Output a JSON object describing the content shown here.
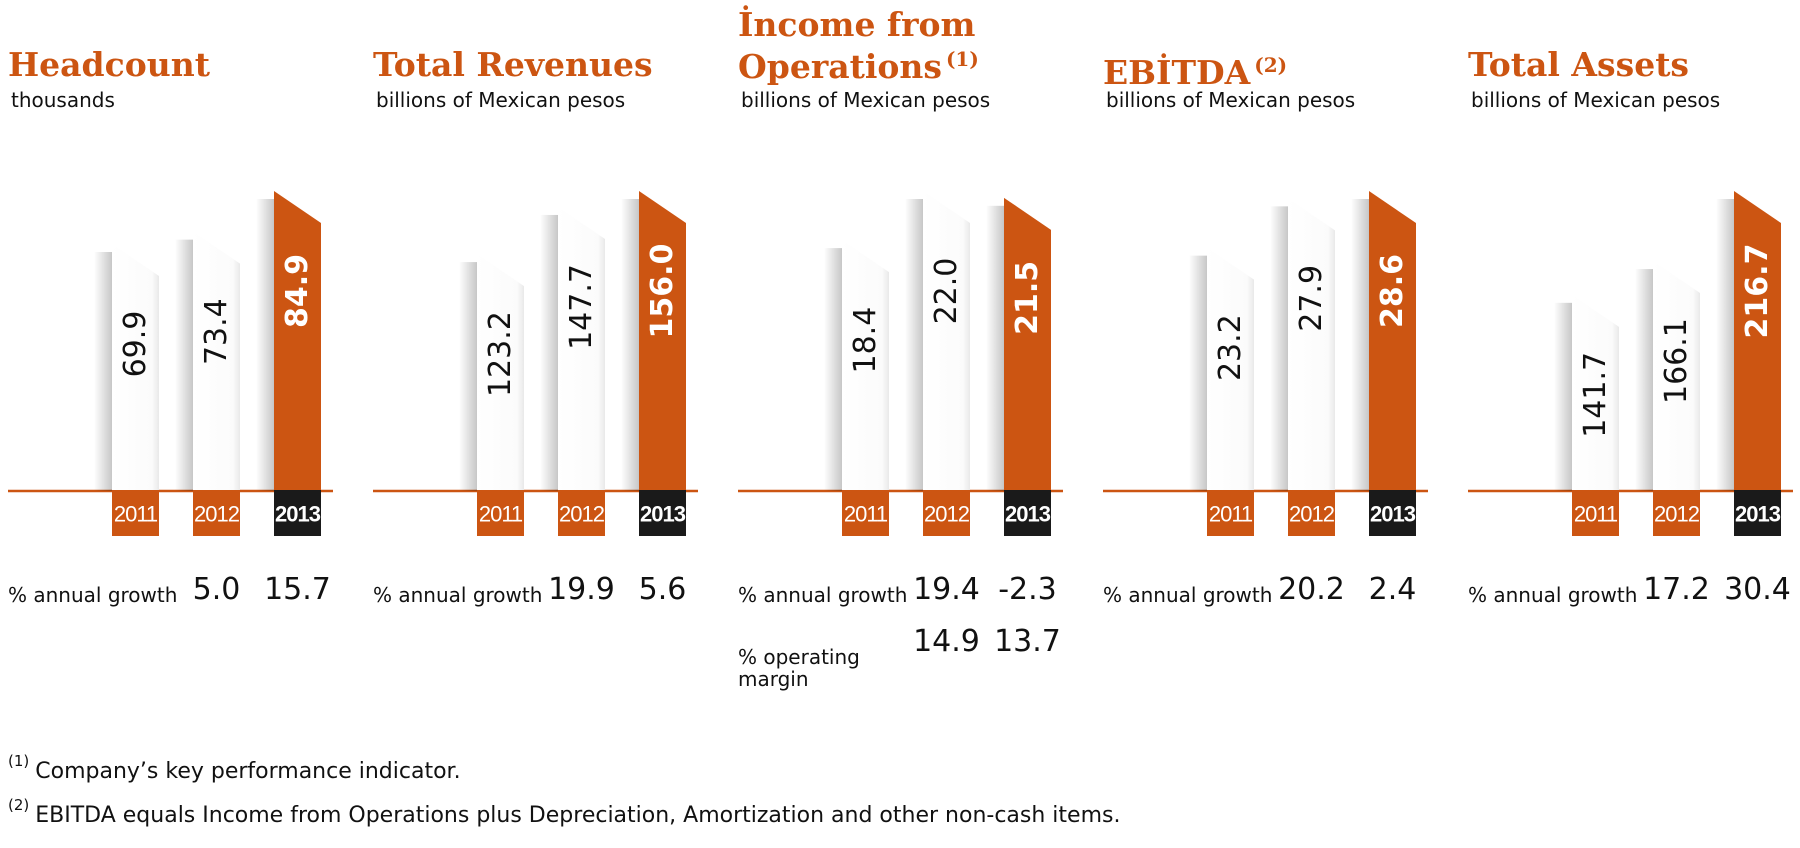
{
  "accent": "#cc5512",
  "dark": "#1a1a1a",
  "chart_data": [
    {
      "type": "bar",
      "title": "Headcount",
      "title_note": "",
      "ylabel": "thousands",
      "categories": [
        "2011",
        "2012",
        "2013"
      ],
      "values": [
        69.9,
        73.4,
        84.9
      ],
      "value_labels": [
        "69.9",
        "73.4",
        "84.9"
      ],
      "metrics": [
        {
          "label": "% annual growth",
          "values": [
            "",
            "5.0",
            "15.7"
          ]
        }
      ]
    },
    {
      "type": "bar",
      "title": "Total Revenues",
      "title_note": "",
      "ylabel": "billions of Mexican pesos",
      "categories": [
        "2011",
        "2012",
        "2013"
      ],
      "values": [
        123.2,
        147.7,
        156.0
      ],
      "value_labels": [
        "123.2",
        "147.7",
        "156.0"
      ],
      "metrics": [
        {
          "label": "% annual growth",
          "values": [
            "",
            "19.9",
            "5.6"
          ]
        }
      ]
    },
    {
      "type": "bar",
      "title": "İncome from Operations",
      "title_lines": [
        "İncome from",
        "Operations"
      ],
      "title_note": "(1)",
      "ylabel": "billions of Mexican pesos",
      "categories": [
        "2011",
        "2012",
        "2013"
      ],
      "values": [
        18.4,
        22.0,
        21.5
      ],
      "value_labels": [
        "18.4",
        "22.0",
        "21.5"
      ],
      "metrics": [
        {
          "label": "% annual growth",
          "values": [
            "",
            "19.4",
            "-2.3"
          ]
        },
        {
          "label": "% operating margin",
          "label_lines": [
            "% operating",
            "margin"
          ],
          "values": [
            "",
            "14.9",
            "13.7"
          ]
        }
      ]
    },
    {
      "type": "bar",
      "title": "EBİTDA",
      "title_note": "(2)",
      "ylabel": "billions of Mexican pesos",
      "categories": [
        "2011",
        "2012",
        "2013"
      ],
      "values": [
        23.2,
        27.9,
        28.6
      ],
      "value_labels": [
        "23.2",
        "27.9",
        "28.6"
      ],
      "metrics": [
        {
          "label": "% annual growth",
          "values": [
            "",
            "20.2",
            "2.4"
          ]
        }
      ]
    },
    {
      "type": "bar",
      "title": "Total Assets",
      "title_note": "",
      "ylabel": "billions of Mexican pesos",
      "categories": [
        "2011",
        "2012",
        "2013"
      ],
      "values": [
        141.7,
        166.1,
        216.7
      ],
      "value_labels": [
        "141.7",
        "166.1",
        "216.7"
      ],
      "metrics": [
        {
          "label": "% annual growth",
          "values": [
            "",
            "17.2",
            "30.4"
          ]
        }
      ]
    }
  ],
  "footnotes": [
    {
      "marker": "(1)",
      "text": "Company’s key performance indicator."
    },
    {
      "marker": "(2)",
      "text": "EBITDA equals Income from Operations plus Depreciation, Amortization and other non-cash items."
    }
  ]
}
